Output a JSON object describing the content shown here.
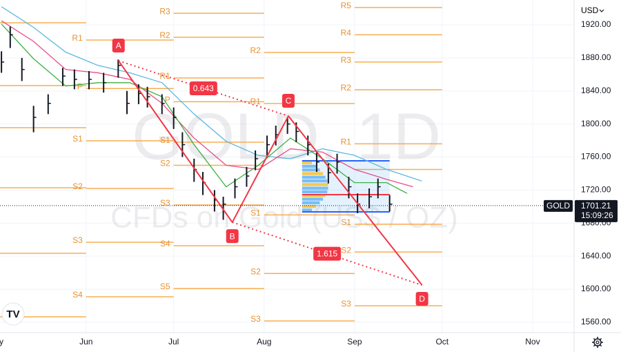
{
  "chart_data": {
    "type": "candlestick",
    "symbol": "GOLD",
    "currency": "USD",
    "watermark": "GOLD, 1D",
    "watermark_sub": "CFDs on Gold (US$ / OZ)",
    "last_price": 1701.21,
    "countdown": "15:09:26",
    "grid": true,
    "xlim": [
      -29.5,
      167.2
    ],
    "ylim": [
      1547.4,
      1950.1
    ],
    "xticks": [
      {
        "value": -31,
        "label": "May"
      },
      {
        "value": 0,
        "label": "Jun"
      },
      {
        "value": 30,
        "label": "Jul"
      },
      {
        "value": 61,
        "label": "Aug"
      },
      {
        "value": 92,
        "label": "Sep"
      },
      {
        "value": 122,
        "label": "Oct"
      },
      {
        "value": 153,
        "label": "Nov"
      }
    ],
    "yticks": [
      {
        "value": 1560,
        "label": "1560.00"
      },
      {
        "value": 1600,
        "label": "1600.00"
      },
      {
        "value": 1640,
        "label": "1640.00"
      },
      {
        "value": 1680,
        "label": "1680.00"
      },
      {
        "value": 1720,
        "label": "1720.00"
      },
      {
        "value": 1760,
        "label": "1760.00"
      },
      {
        "value": 1800,
        "label": "1800.00"
      },
      {
        "value": 1840,
        "label": "1840.00"
      },
      {
        "value": 1880,
        "label": "1880.00"
      },
      {
        "value": 1920,
        "label": "1920.00"
      }
    ],
    "x": [
      -29,
      -26,
      -22,
      -18,
      -13,
      -8,
      -4,
      1,
      6,
      11,
      14,
      18,
      21,
      26,
      30,
      33,
      37,
      40,
      44,
      47,
      51,
      55,
      58,
      62,
      65,
      69,
      72,
      76,
      79,
      83,
      86,
      90,
      93,
      97,
      100,
      104
    ],
    "high": [
      1888,
      1918,
      1880,
      1822,
      1836,
      1868,
      1866,
      1864,
      1862,
      1878,
      1840,
      1848,
      1845,
      1836,
      1820,
      1790,
      1758,
      1742,
      1720,
      1712,
      1734,
      1748,
      1768,
      1786,
      1798,
      1808,
      1802,
      1786,
      1766,
      1752,
      1764,
      1736,
      1716,
      1722,
      1734,
      1714
    ],
    "low": [
      1862,
      1892,
      1852,
      1790,
      1812,
      1846,
      1842,
      1842,
      1838,
      1856,
      1812,
      1824,
      1820,
      1812,
      1794,
      1760,
      1730,
      1714,
      1694,
      1684,
      1710,
      1724,
      1744,
      1762,
      1774,
      1788,
      1778,
      1762,
      1742,
      1728,
      1740,
      1710,
      1692,
      1698,
      1710,
      1694
    ],
    "close": [
      1875,
      1908,
      1866,
      1808,
      1825,
      1858,
      1854,
      1854,
      1850,
      1871,
      1825,
      1837,
      1833,
      1825,
      1808,
      1775,
      1745,
      1729,
      1708,
      1703,
      1724,
      1737,
      1758,
      1775,
      1787,
      1800,
      1791,
      1775,
      1754,
      1741,
      1754,
      1724,
      1703,
      1712,
      1724,
      1703
    ],
    "moving_averages": [
      {
        "color": "#5bb8e0",
        "x": [
          -29,
          -18,
          -7,
          4,
          15,
          26,
          37,
          48,
          59,
          70,
          81,
          92,
          103,
          115
        ],
        "values": [
          1942,
          1917,
          1887,
          1871,
          1862,
          1850,
          1812,
          1779,
          1762,
          1758,
          1770,
          1762,
          1745,
          1731
        ]
      },
      {
        "color": "#e84d8a",
        "x": [
          -29,
          -18,
          -7,
          4,
          15,
          26,
          37,
          48,
          59,
          70,
          81,
          92,
          103,
          112
        ],
        "values": [
          1925,
          1900,
          1866,
          1862,
          1854,
          1825,
          1783,
          1750,
          1745,
          1770,
          1766,
          1745,
          1733,
          1724
        ]
      },
      {
        "color": "#3cb043",
        "x": [
          -29,
          -18,
          -7,
          4,
          15,
          26,
          37,
          48,
          59,
          70,
          81,
          92,
          103,
          110
        ],
        "values": [
          1921,
          1879,
          1846,
          1850,
          1850,
          1833,
          1775,
          1724,
          1750,
          1783,
          1758,
          1729,
          1729,
          1716
        ]
      }
    ],
    "pivot_color": "#f7a541",
    "pivots": [
      {
        "start": -31,
        "end": 0,
        "levels": [
          {
            "label": null,
            "value": 1922.5
          },
          {
            "label": null,
            "value": 1846.5
          },
          {
            "label": null,
            "value": 1795.5
          },
          {
            "label": null,
            "value": 1722.8
          },
          {
            "label": null,
            "value": 1643.5
          },
          {
            "label": null,
            "value": 1566.6
          }
        ]
      },
      {
        "start": 0,
        "end": 30,
        "levels": [
          {
            "label": "R1",
            "value": 1901.6
          },
          {
            "label": "P",
            "value": 1843
          },
          {
            "label": "S1",
            "value": 1779.7
          },
          {
            "label": "S2",
            "value": 1722
          },
          {
            "label": "S3",
            "value": 1656.8
          },
          {
            "label": "S4",
            "value": 1590.8
          }
        ]
      },
      {
        "start": 30,
        "end": 61,
        "levels": [
          {
            "label": "R3",
            "value": 1934
          },
          {
            "label": "R2",
            "value": 1905
          },
          {
            "label": "R1",
            "value": 1855.7
          },
          {
            "label": "P",
            "value": 1827
          },
          {
            "label": "S1",
            "value": 1778
          },
          {
            "label": "S2",
            "value": 1750
          },
          {
            "label": "S3",
            "value": 1702
          },
          {
            "label": "S4",
            "value": 1652.7
          },
          {
            "label": "S5",
            "value": 1600.9
          }
        ]
      },
      {
        "start": 61,
        "end": 92,
        "levels": [
          {
            "label": "R2",
            "value": 1886.6
          },
          {
            "label": "R1",
            "value": 1824.8
          },
          {
            "label": "S1",
            "value": 1690
          },
          {
            "label": "S2",
            "value": 1619
          },
          {
            "label": "S3",
            "value": 1561.6
          }
        ]
      },
      {
        "start": 92,
        "end": 122,
        "levels": [
          {
            "label": "R5",
            "value": 1941
          },
          {
            "label": "R4",
            "value": 1908
          },
          {
            "label": "R3",
            "value": 1875
          },
          {
            "label": "R2",
            "value": 1841.5
          },
          {
            "label": "R1",
            "value": 1776
          },
          {
            "label": null,
            "value": 1745
          },
          {
            "label": "S1",
            "value": 1678.6
          },
          {
            "label": "S2",
            "value": 1645
          },
          {
            "label": "S3",
            "value": 1580
          }
        ]
      }
    ],
    "pattern": {
      "color": "#f23645",
      "points": [
        {
          "label": "A",
          "x": 11.1,
          "y": 1876.6
        },
        {
          "label": "B",
          "x": 50.1,
          "y": 1681
        },
        {
          "label": "C",
          "x": 69.3,
          "y": 1809.7
        },
        {
          "label": "D",
          "x": 115.1,
          "y": 1605
        }
      ],
      "ratios": [
        0.643,
        1.615
      ]
    },
    "volume_profile": {
      "start": 74,
      "end": 104,
      "top": 1755.4,
      "bottom": 1693.6,
      "poc": 1714.5
    }
  }
}
